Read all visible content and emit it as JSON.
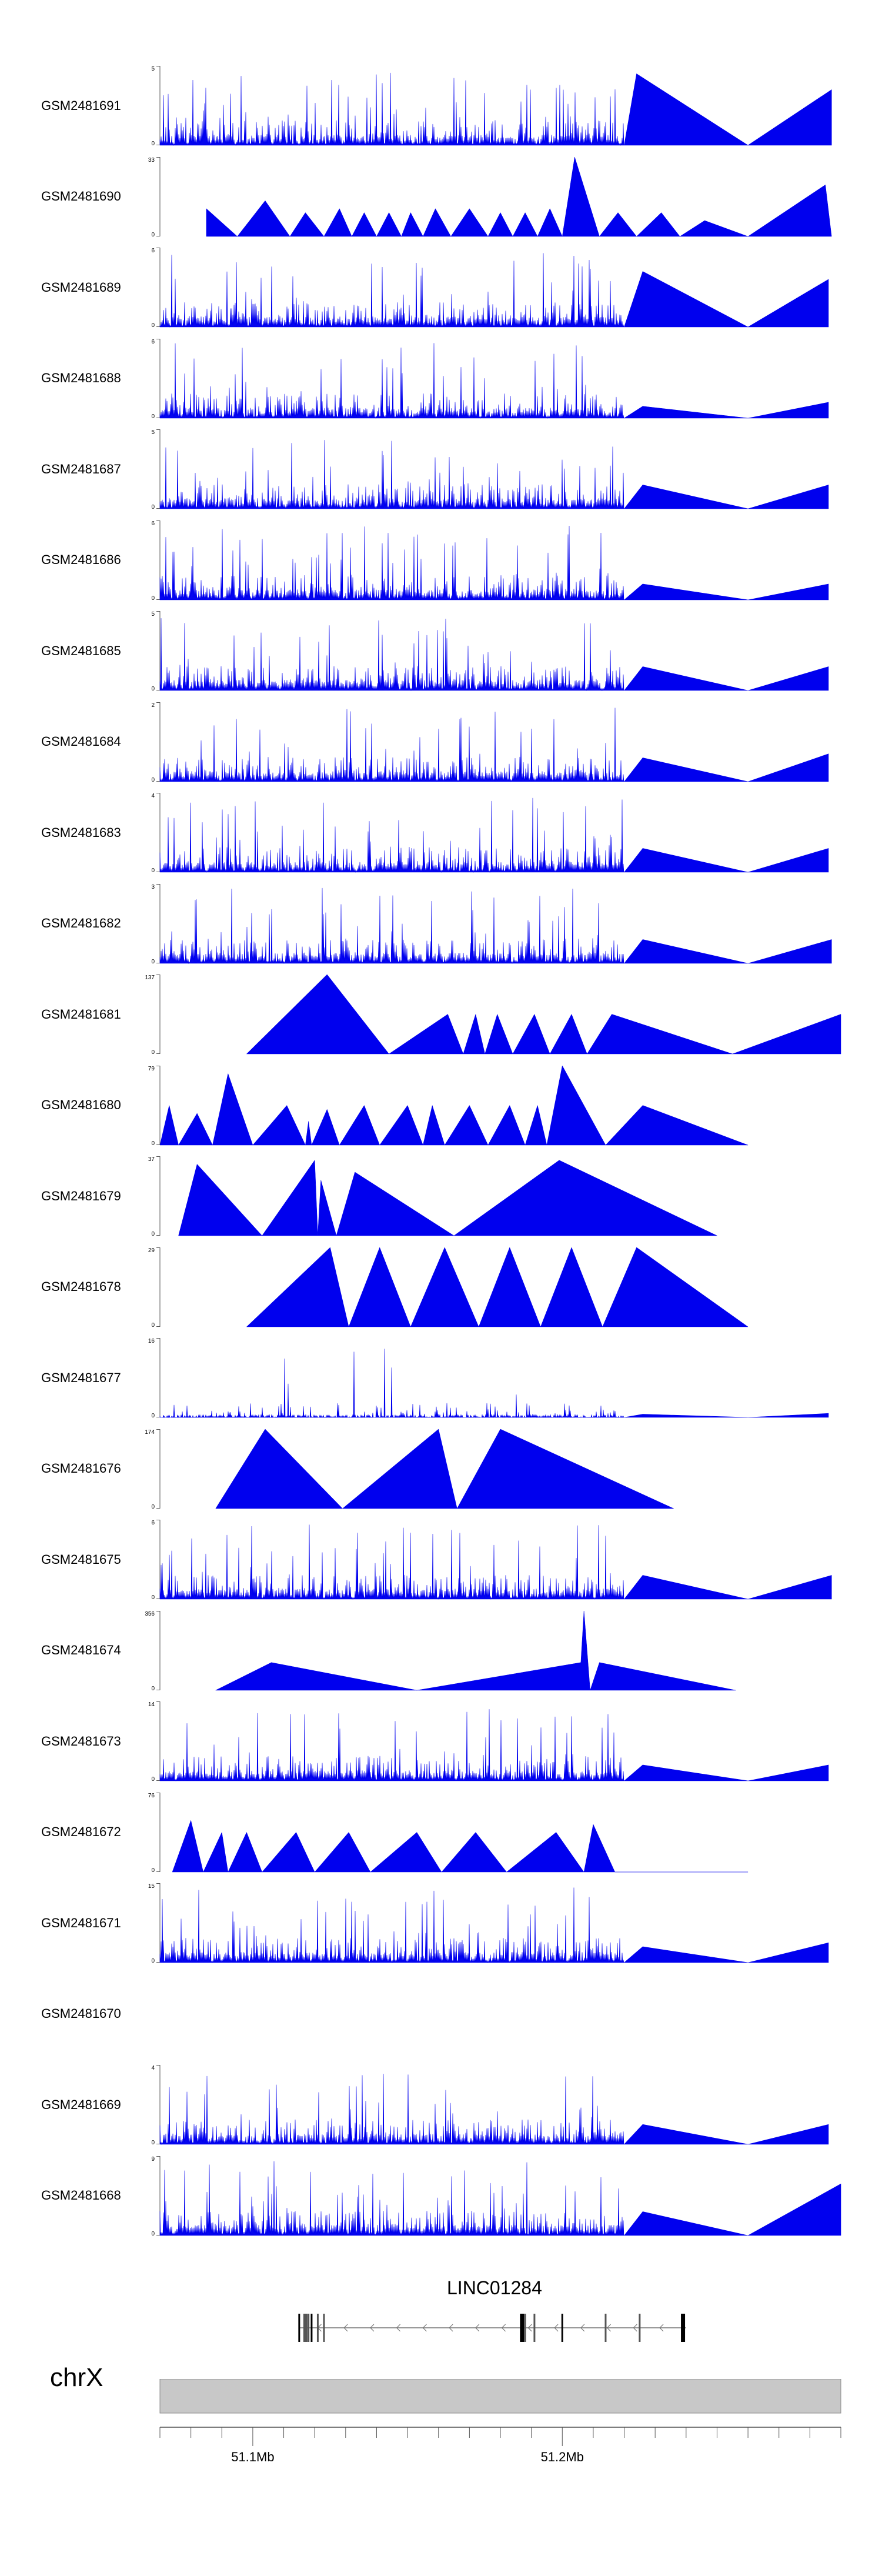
{
  "chart_data": {
    "type": "area",
    "chromosome": "chrX",
    "x_range_mb": [
      51.07,
      51.29
    ],
    "axis_tick_labels": [
      {
        "label": "51.1Mb",
        "mb": 51.1
      },
      {
        "label": "51.2Mb",
        "mb": 51.2
      }
    ],
    "fill_color": "#0000ee",
    "gene": {
      "name": "LINC01284",
      "strand": "-",
      "start_mb": 51.115,
      "end_mb": 51.24,
      "exons_mb": [
        51.115,
        51.117,
        51.118,
        51.119,
        51.121,
        51.123,
        51.187,
        51.188,
        51.191,
        51.2,
        51.214,
        51.225,
        51.239
      ]
    },
    "tracks": [
      {
        "name": "GSM2481691",
        "ymax": "5",
        "ymin": "0",
        "style": "dense",
        "dense_end_mb": 51.22,
        "peaks_mb": [
          [
            51.224,
            0.9
          ],
          [
            51.26,
            0.0
          ],
          [
            51.287,
            0.7
          ]
        ]
      },
      {
        "name": "GSM2481690",
        "ymax": "33",
        "ymin": "0",
        "style": "triangles",
        "peaks_mb": [
          [
            51.085,
            0.35
          ],
          [
            51.095,
            0.0
          ],
          [
            51.104,
            0.45
          ],
          [
            51.112,
            0.0
          ],
          [
            51.117,
            0.3
          ],
          [
            51.123,
            0.0
          ],
          [
            51.128,
            0.35
          ],
          [
            51.132,
            0.0
          ],
          [
            51.136,
            0.3
          ],
          [
            51.14,
            0.0
          ],
          [
            51.144,
            0.3
          ],
          [
            51.148,
            0.0
          ],
          [
            51.151,
            0.3
          ],
          [
            51.155,
            0.0
          ],
          [
            51.159,
            0.35
          ],
          [
            51.164,
            0.0
          ],
          [
            51.17,
            0.35
          ],
          [
            51.176,
            0.0
          ],
          [
            51.18,
            0.3
          ],
          [
            51.184,
            0.0
          ],
          [
            51.188,
            0.3
          ],
          [
            51.192,
            0.0
          ],
          [
            51.196,
            0.35
          ],
          [
            51.2,
            0.0
          ],
          [
            51.204,
            1.0
          ],
          [
            51.212,
            0.0
          ],
          [
            51.218,
            0.3
          ],
          [
            51.224,
            0.0
          ],
          [
            51.232,
            0.3
          ],
          [
            51.238,
            0.0
          ],
          [
            51.246,
            0.2
          ],
          [
            51.26,
            0.0
          ],
          [
            51.285,
            0.65
          ],
          [
            51.287,
            0.0
          ]
        ]
      },
      {
        "name": "GSM2481689",
        "ymax": "6",
        "ymin": "0",
        "style": "dense",
        "dense_end_mb": 51.22,
        "peaks_mb": [
          [
            51.226,
            0.7
          ],
          [
            51.26,
            0.0
          ],
          [
            51.286,
            0.6
          ]
        ]
      },
      {
        "name": "GSM2481688",
        "ymax": "6",
        "ymin": "0",
        "style": "dense",
        "dense_end_mb": 51.22,
        "peaks_mb": [
          [
            51.226,
            0.15
          ],
          [
            51.26,
            0.0
          ],
          [
            51.286,
            0.2
          ]
        ]
      },
      {
        "name": "GSM2481687",
        "ymax": "5",
        "ymin": "0",
        "style": "dense",
        "dense_end_mb": 51.22,
        "peaks_mb": [
          [
            51.226,
            0.3
          ],
          [
            51.26,
            0.0
          ],
          [
            51.286,
            0.3
          ]
        ]
      },
      {
        "name": "GSM2481686",
        "ymax": "6",
        "ymin": "0",
        "style": "dense",
        "dense_end_mb": 51.22,
        "peaks_mb": [
          [
            51.226,
            0.2
          ],
          [
            51.26,
            0.0
          ],
          [
            51.286,
            0.2
          ]
        ]
      },
      {
        "name": "GSM2481685",
        "ymax": "5",
        "ymin": "0",
        "style": "dense",
        "dense_end_mb": 51.22,
        "peaks_mb": [
          [
            51.226,
            0.3
          ],
          [
            51.26,
            0.0
          ],
          [
            51.286,
            0.3
          ]
        ]
      },
      {
        "name": "GSM2481684",
        "ymax": "2",
        "ymin": "0",
        "style": "dense",
        "dense_end_mb": 51.22,
        "peaks_mb": [
          [
            51.226,
            0.3
          ],
          [
            51.26,
            0.0
          ],
          [
            51.286,
            0.35
          ]
        ]
      },
      {
        "name": "GSM2481683",
        "ymax": "4",
        "ymin": "0",
        "style": "dense",
        "dense_end_mb": 51.22,
        "peaks_mb": [
          [
            51.226,
            0.3
          ],
          [
            51.26,
            0.0
          ],
          [
            51.286,
            0.3
          ]
        ]
      },
      {
        "name": "GSM2481682",
        "ymax": "3",
        "ymin": "0",
        "style": "dense",
        "dense_end_mb": 51.22,
        "peaks_mb": [
          [
            51.226,
            0.3
          ],
          [
            51.26,
            0.0
          ],
          [
            51.287,
            0.3
          ]
        ]
      },
      {
        "name": "GSM2481681",
        "ymax": "137",
        "ymin": "0",
        "style": "triangles",
        "peaks_mb": [
          [
            51.098,
            0.0
          ],
          [
            51.124,
            1.0
          ],
          [
            51.144,
            0.0
          ],
          [
            51.163,
            0.5
          ],
          [
            51.168,
            0.0
          ],
          [
            51.172,
            0.5
          ],
          [
            51.175,
            0.0
          ],
          [
            51.179,
            0.5
          ],
          [
            51.184,
            0.0
          ],
          [
            51.191,
            0.5
          ],
          [
            51.196,
            0.0
          ],
          [
            51.203,
            0.5
          ],
          [
            51.208,
            0.0
          ],
          [
            51.216,
            0.5
          ],
          [
            51.255,
            0.0
          ],
          [
            51.29,
            0.5
          ]
        ]
      },
      {
        "name": "GSM2481680",
        "ymax": "79",
        "ymin": "0",
        "style": "triangles",
        "peaks_mb": [
          [
            51.07,
            0.0
          ],
          [
            51.073,
            0.5
          ],
          [
            51.076,
            0.0
          ],
          [
            51.082,
            0.4
          ],
          [
            51.087,
            0.0
          ],
          [
            51.092,
            0.9
          ],
          [
            51.1,
            0.0
          ],
          [
            51.111,
            0.5
          ],
          [
            51.117,
            0.0
          ],
          [
            51.118,
            0.3
          ],
          [
            51.119,
            0.0
          ],
          [
            51.124,
            0.45
          ],
          [
            51.128,
            0.0
          ],
          [
            51.136,
            0.5
          ],
          [
            51.141,
            0.0
          ],
          [
            51.15,
            0.5
          ],
          [
            51.155,
            0.0
          ],
          [
            51.158,
            0.5
          ],
          [
            51.162,
            0.0
          ],
          [
            51.17,
            0.5
          ],
          [
            51.176,
            0.0
          ],
          [
            51.183,
            0.5
          ],
          [
            51.188,
            0.0
          ],
          [
            51.192,
            0.5
          ],
          [
            51.195,
            0.0
          ],
          [
            51.2,
            1.0
          ],
          [
            51.214,
            0.0
          ],
          [
            51.226,
            0.5
          ],
          [
            51.26,
            0.0
          ]
        ]
      },
      {
        "name": "GSM2481679",
        "ymax": "37",
        "ymin": "0",
        "style": "triangles",
        "peaks_mb": [
          [
            51.076,
            0.0
          ],
          [
            51.082,
            0.9
          ],
          [
            51.103,
            0.0
          ],
          [
            51.12,
            0.95
          ],
          [
            51.121,
            0.0
          ],
          [
            51.122,
            0.7
          ],
          [
            51.127,
            0.0
          ],
          [
            51.133,
            0.8
          ],
          [
            51.165,
            0.0
          ],
          [
            51.199,
            0.95
          ],
          [
            51.25,
            0.0
          ]
        ]
      },
      {
        "name": "GSM2481678",
        "ymax": "29",
        "ymin": "0",
        "style": "triangles",
        "peaks_mb": [
          [
            51.098,
            0.0
          ],
          [
            51.125,
            1.0
          ],
          [
            51.131,
            0.0
          ],
          [
            51.141,
            1.0
          ],
          [
            51.151,
            0.0
          ],
          [
            51.162,
            1.0
          ],
          [
            51.173,
            0.0
          ],
          [
            51.183,
            1.0
          ],
          [
            51.193,
            0.0
          ],
          [
            51.203,
            1.0
          ],
          [
            51.213,
            0.0
          ],
          [
            51.224,
            1.0
          ],
          [
            51.26,
            0.0
          ]
        ]
      },
      {
        "name": "GSM2481677",
        "ymax": "16",
        "ymin": "0",
        "style": "sparse",
        "dense_end_mb": 51.22,
        "peaks_mb": [
          [
            51.226,
            0.04
          ],
          [
            51.26,
            0.0
          ],
          [
            51.286,
            0.05
          ]
        ]
      },
      {
        "name": "GSM2481676",
        "ymax": "174",
        "ymin": "0",
        "style": "triangles",
        "peaks_mb": [
          [
            51.088,
            0.0
          ],
          [
            51.104,
            1.0
          ],
          [
            51.129,
            0.0
          ],
          [
            51.16,
            1.0
          ],
          [
            51.166,
            0.0
          ],
          [
            51.18,
            1.0
          ],
          [
            51.236,
            0.0
          ]
        ]
      },
      {
        "name": "GSM2481675",
        "ymax": "6",
        "ymin": "0",
        "style": "dense",
        "dense_end_mb": 51.22,
        "peaks_mb": [
          [
            51.226,
            0.3
          ],
          [
            51.26,
            0.0
          ],
          [
            51.287,
            0.3
          ]
        ]
      },
      {
        "name": "GSM2481674",
        "ymax": "356",
        "ymin": "0",
        "style": "triangles",
        "peaks_mb": [
          [
            51.088,
            0.0
          ],
          [
            51.106,
            0.35
          ],
          [
            51.153,
            0.0
          ],
          [
            51.206,
            0.35
          ],
          [
            51.207,
            1.0
          ],
          [
            51.209,
            0.0
          ],
          [
            51.212,
            0.35
          ],
          [
            51.256,
            0.0
          ]
        ]
      },
      {
        "name": "GSM2481673",
        "ymax": "14",
        "ymin": "0",
        "style": "dense",
        "dense_end_mb": 51.22,
        "peaks_mb": [
          [
            51.226,
            0.2
          ],
          [
            51.26,
            0.0
          ],
          [
            51.286,
            0.2
          ]
        ]
      },
      {
        "name": "GSM2481672",
        "ymax": "76",
        "ymin": "0",
        "style": "triangles",
        "peaks_mb": [
          [
            51.074,
            0.0
          ],
          [
            51.08,
            0.65
          ],
          [
            51.084,
            0.0
          ],
          [
            51.09,
            0.5
          ],
          [
            51.092,
            0.0
          ],
          [
            51.098,
            0.5
          ],
          [
            51.103,
            0.0
          ],
          [
            51.114,
            0.5
          ],
          [
            51.12,
            0.0
          ],
          [
            51.131,
            0.5
          ],
          [
            51.138,
            0.0
          ],
          [
            51.153,
            0.5
          ],
          [
            51.161,
            0.0
          ],
          [
            51.172,
            0.5
          ],
          [
            51.182,
            0.0
          ],
          [
            51.198,
            0.5
          ],
          [
            51.207,
            0.0
          ],
          [
            51.21,
            0.6
          ],
          [
            51.217,
            0.0
          ],
          [
            51.26,
            0.0
          ]
        ]
      },
      {
        "name": "GSM2481671",
        "ymax": "15",
        "ymin": "0",
        "style": "dense",
        "dense_end_mb": 51.22,
        "peaks_mb": [
          [
            51.226,
            0.2
          ],
          [
            51.26,
            0.0
          ],
          [
            51.286,
            0.25
          ]
        ]
      },
      {
        "name": "GSM2481670",
        "ymax": "",
        "ymin": "",
        "style": "empty",
        "peaks_mb": []
      },
      {
        "name": "GSM2481669",
        "ymax": "4",
        "ymin": "0",
        "style": "dense",
        "dense_end_mb": 51.22,
        "peaks_mb": [
          [
            51.226,
            0.25
          ],
          [
            51.26,
            0.0
          ],
          [
            51.286,
            0.25
          ]
        ]
      },
      {
        "name": "GSM2481668",
        "ymax": "9",
        "ymin": "0",
        "style": "dense",
        "dense_end_mb": 51.22,
        "peaks_mb": [
          [
            51.226,
            0.3
          ],
          [
            51.26,
            0.0
          ],
          [
            51.29,
            0.65
          ]
        ]
      }
    ]
  }
}
